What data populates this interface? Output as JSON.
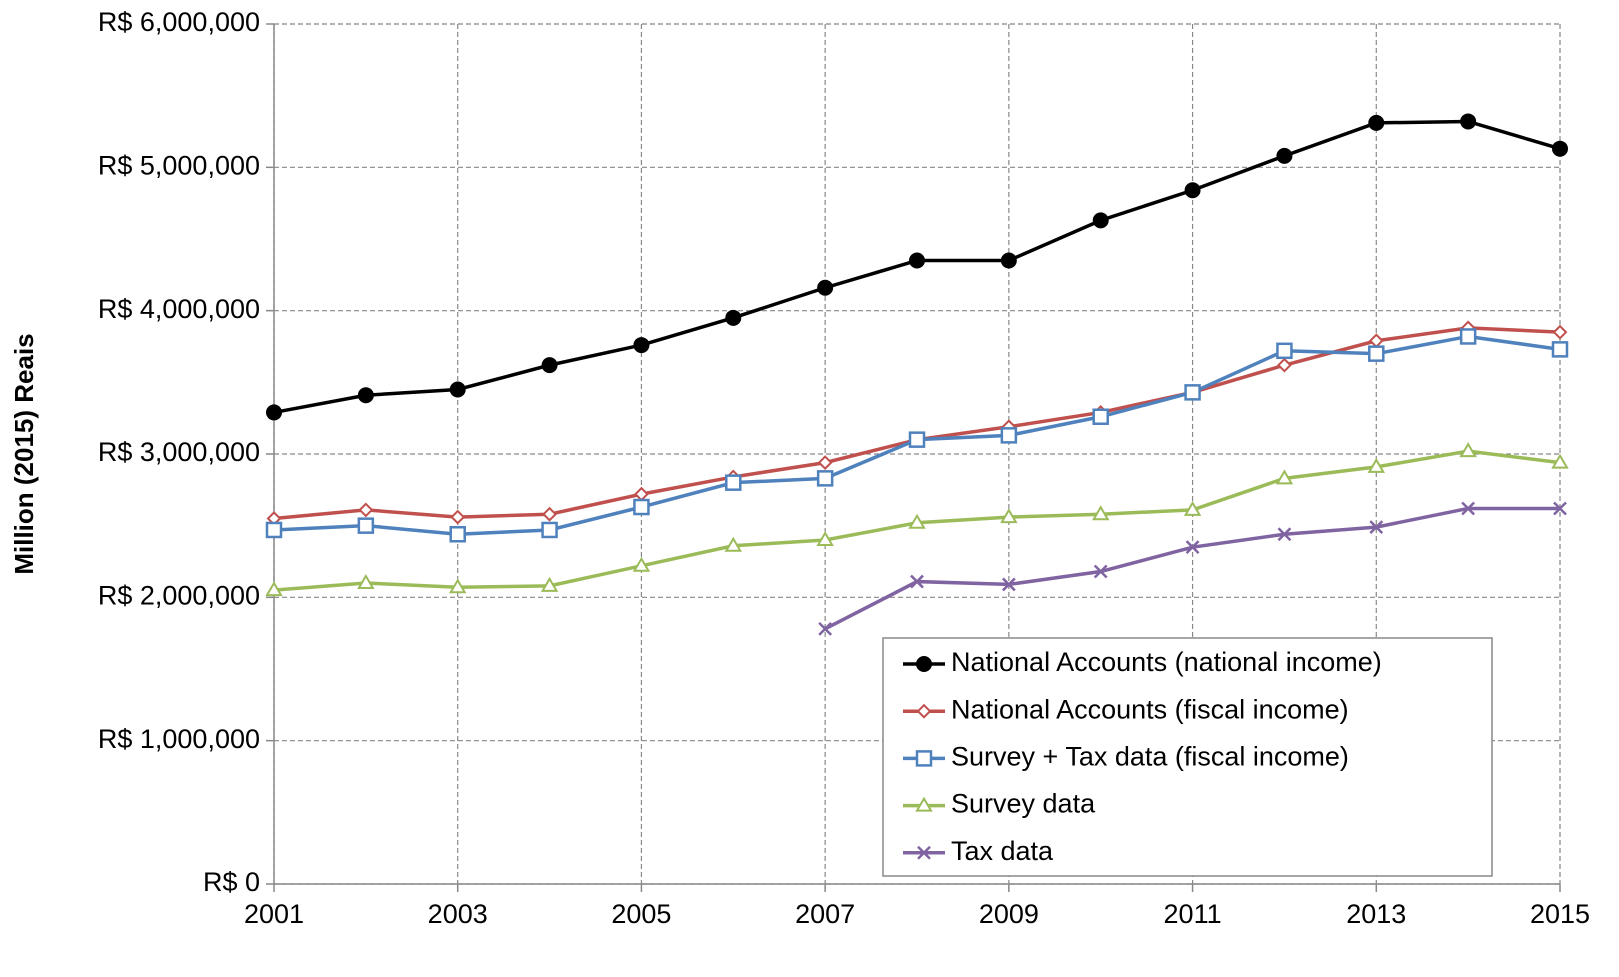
{
  "chart_data": {
    "type": "line",
    "y_label": "Million (2015) Reais",
    "x": [
      2001,
      2002,
      2003,
      2004,
      2005,
      2006,
      2007,
      2008,
      2009,
      2010,
      2011,
      2012,
      2013,
      2014,
      2015
    ],
    "xlim": [
      2001,
      2015
    ],
    "xticks": [
      2001,
      2003,
      2005,
      2007,
      2009,
      2011,
      2013,
      2015
    ],
    "ylim": [
      0,
      6000000
    ],
    "yticks": [
      {
        "value": 0,
        "label": "R$ 0"
      },
      {
        "value": 1000000,
        "label": "R$ 1,000,000"
      },
      {
        "value": 2000000,
        "label": "R$ 2,000,000"
      },
      {
        "value": 3000000,
        "label": "R$ 3,000,000"
      },
      {
        "value": 4000000,
        "label": "R$ 4,000,000"
      },
      {
        "value": 5000000,
        "label": "R$ 5,000,000"
      },
      {
        "value": 6000000,
        "label": "R$ 6,000,000"
      }
    ],
    "grid": true,
    "legend": "bottom-right",
    "series": [
      {
        "name": "National Accounts (national income)",
        "color": "#000000",
        "marker": "circle",
        "values": [
          3290000,
          3410000,
          3450000,
          3620000,
          3760000,
          3950000,
          4160000,
          4350000,
          4350000,
          4630000,
          4840000,
          5080000,
          5310000,
          5320000,
          5130000
        ]
      },
      {
        "name": "National Accounts (fiscal income)",
        "color": "#c0504d",
        "marker": "diamond",
        "values": [
          2550000,
          2610000,
          2560000,
          2580000,
          2720000,
          2840000,
          2940000,
          3100000,
          3190000,
          3290000,
          3430000,
          3620000,
          3790000,
          3880000,
          3850000
        ]
      },
      {
        "name": "Survey + Tax data (fiscal income)",
        "color": "#4f81bd",
        "marker": "square",
        "values": [
          2470000,
          2500000,
          2440000,
          2470000,
          2630000,
          2800000,
          2830000,
          3100000,
          3130000,
          3260000,
          3430000,
          3720000,
          3700000,
          3820000,
          3730000
        ]
      },
      {
        "name": "Survey data",
        "color": "#9bbb59",
        "marker": "triangle",
        "values": [
          2050000,
          2100000,
          2070000,
          2080000,
          2220000,
          2360000,
          2400000,
          2520000,
          2560000,
          2580000,
          2610000,
          2830000,
          2910000,
          3020000,
          2940000
        ]
      },
      {
        "name": "Tax data",
        "color": "#8064a2",
        "marker": "x",
        "values": [
          null,
          null,
          null,
          null,
          null,
          null,
          1780000,
          2110000,
          2090000,
          2180000,
          2350000,
          2440000,
          2490000,
          2620000,
          2620000
        ]
      }
    ]
  }
}
